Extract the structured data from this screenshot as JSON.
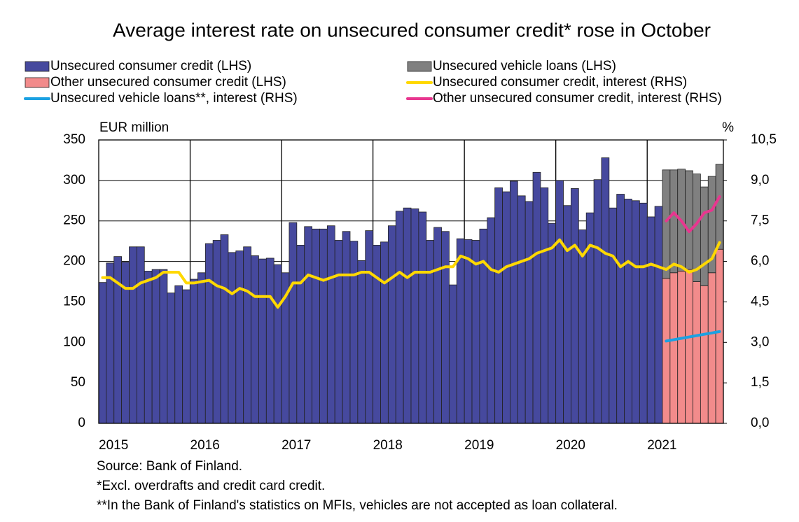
{
  "chart_data": {
    "type": "bar_line",
    "title": "Average interest rate on unsecured consumer credit* rose in October",
    "y_label": "EUR million",
    "y2_label": "%",
    "notes": [
      "Source: Bank of Finland.",
      "*Excl. overdrafts and credit card credit.",
      "**In the Bank of Finland's statistics on MFIs, vehicles are not accepted as loan collateral."
    ],
    "categories": [
      "2015",
      null,
      null,
      null,
      null,
      null,
      null,
      null,
      null,
      null,
      null,
      null,
      "2016",
      null,
      null,
      null,
      null,
      null,
      null,
      null,
      null,
      null,
      null,
      null,
      "2017",
      null,
      null,
      null,
      null,
      null,
      null,
      null,
      null,
      null,
      null,
      null,
      "2018",
      null,
      null,
      null,
      null,
      null,
      null,
      null,
      null,
      null,
      null,
      null,
      "2019",
      null,
      null,
      null,
      null,
      null,
      null,
      null,
      null,
      null,
      null,
      null,
      "2020",
      null,
      null,
      null,
      null,
      null,
      null,
      null,
      null,
      null,
      null,
      null,
      "2021",
      null,
      null,
      null,
      null,
      null,
      null,
      null,
      null,
      null
    ],
    "ylim": [
      0,
      350
    ],
    "yticks": [
      0,
      50,
      100,
      150,
      200,
      250,
      300,
      350
    ],
    "y2lim": [
      0,
      10.5
    ],
    "y2ticks": [
      {
        "value": 0,
        "label": "0,0"
      },
      {
        "value": 1.5,
        "label": "1,5"
      },
      {
        "value": 3,
        "label": "3,0"
      },
      {
        "value": 4.5,
        "label": "4,5"
      },
      {
        "value": 6,
        "label": "6,0"
      },
      {
        "value": 7.5,
        "label": "7,5"
      },
      {
        "value": 9,
        "label": "9,0"
      },
      {
        "value": 10.5,
        "label": "10,5"
      }
    ],
    "grid": true,
    "series": [
      {
        "name": "Unsecured consumer credit (LHS)",
        "kind": "bar",
        "color": "#46499e",
        "values": [
          174,
          198,
          206,
          199,
          218,
          218,
          188,
          190,
          190,
          161,
          170,
          165,
          178,
          186,
          222,
          226,
          233,
          211,
          213,
          218,
          207,
          203,
          204,
          196,
          186,
          248,
          220,
          243,
          240,
          240,
          244,
          226,
          237,
          225,
          201,
          238,
          220,
          224,
          244,
          262,
          266,
          265,
          261,
          226,
          242,
          237,
          171,
          228,
          227,
          226,
          240,
          254,
          291,
          286,
          299,
          281,
          274,
          310,
          291,
          247,
          300,
          269,
          290,
          239,
          260,
          301,
          328,
          266,
          283,
          277,
          275,
          272,
          255,
          268,
          null,
          null,
          null,
          null,
          null,
          null,
          null,
          null
        ]
      },
      {
        "name": "Unsecured vehicle loans (LHS)",
        "kind": "bar",
        "color": "#808080",
        "values": [
          null,
          null,
          null,
          null,
          null,
          null,
          null,
          null,
          null,
          null,
          null,
          null,
          null,
          null,
          null,
          null,
          null,
          null,
          null,
          null,
          null,
          null,
          null,
          null,
          null,
          null,
          null,
          null,
          null,
          null,
          null,
          null,
          null,
          null,
          null,
          null,
          null,
          null,
          null,
          null,
          null,
          null,
          null,
          null,
          null,
          null,
          null,
          null,
          null,
          null,
          null,
          null,
          null,
          null,
          null,
          null,
          null,
          null,
          null,
          null,
          null,
          null,
          null,
          null,
          null,
          null,
          null,
          null,
          null,
          null,
          null,
          null,
          null,
          null,
          134,
          127,
          126,
          122,
          133,
          122,
          119,
          105
        ]
      },
      {
        "name": "Other unsecured consumer credit (LHS)",
        "kind": "bar",
        "color": "#f28b8b",
        "values": [
          null,
          null,
          null,
          null,
          null,
          null,
          null,
          null,
          null,
          null,
          null,
          null,
          null,
          null,
          null,
          null,
          null,
          null,
          null,
          null,
          null,
          null,
          null,
          null,
          null,
          null,
          null,
          null,
          null,
          null,
          null,
          null,
          null,
          null,
          null,
          null,
          null,
          null,
          null,
          null,
          null,
          null,
          null,
          null,
          null,
          null,
          null,
          null,
          null,
          null,
          null,
          null,
          null,
          null,
          null,
          null,
          null,
          null,
          null,
          null,
          null,
          null,
          null,
          null,
          null,
          null,
          null,
          null,
          null,
          null,
          null,
          null,
          null,
          null,
          179,
          186,
          188,
          190,
          175,
          170,
          186,
          215
        ]
      },
      {
        "name": "Unsecured consumer credit, interest (RHS)",
        "kind": "line",
        "axis": "y2",
        "color": "#ffd800",
        "values": [
          5.4,
          5.4,
          5.2,
          5.0,
          5.0,
          5.2,
          5.3,
          5.4,
          5.6,
          5.6,
          5.6,
          5.2,
          5.2,
          5.25,
          5.3,
          5.1,
          5.0,
          4.8,
          5.0,
          4.9,
          4.7,
          4.7,
          4.7,
          4.3,
          4.7,
          5.2,
          5.2,
          5.5,
          5.4,
          5.3,
          5.4,
          5.5,
          5.5,
          5.5,
          5.6,
          5.6,
          5.4,
          5.2,
          5.4,
          5.6,
          5.4,
          5.6,
          5.6,
          5.6,
          5.7,
          5.8,
          5.8,
          6.2,
          6.1,
          5.9,
          6.0,
          5.7,
          5.6,
          5.8,
          5.9,
          6.0,
          6.1,
          6.3,
          6.4,
          6.5,
          6.8,
          6.4,
          6.6,
          6.2,
          6.6,
          6.5,
          6.3,
          6.2,
          5.8,
          6.0,
          5.8,
          5.8,
          5.9,
          5.8,
          5.7,
          5.9,
          5.8,
          5.6,
          5.7,
          5.9,
          6.1,
          6.7
        ]
      },
      {
        "name": "Unsecured vehicle loans**, interest (RHS)",
        "kind": "line",
        "axis": "y2",
        "color": "#1ba1e2",
        "values": [
          null,
          null,
          null,
          null,
          null,
          null,
          null,
          null,
          null,
          null,
          null,
          null,
          null,
          null,
          null,
          null,
          null,
          null,
          null,
          null,
          null,
          null,
          null,
          null,
          null,
          null,
          null,
          null,
          null,
          null,
          null,
          null,
          null,
          null,
          null,
          null,
          null,
          null,
          null,
          null,
          null,
          null,
          null,
          null,
          null,
          null,
          null,
          null,
          null,
          null,
          null,
          null,
          null,
          null,
          null,
          null,
          null,
          null,
          null,
          null,
          null,
          null,
          null,
          null,
          null,
          null,
          null,
          null,
          null,
          null,
          null,
          null,
          null,
          null,
          3.05,
          3.1,
          3.15,
          3.2,
          3.25,
          3.3,
          3.35,
          3.4
        ]
      },
      {
        "name": "Other unsecured consumer credit, interest (RHS)",
        "kind": "line",
        "axis": "y2",
        "color": "#e8368f",
        "values": [
          null,
          null,
          null,
          null,
          null,
          null,
          null,
          null,
          null,
          null,
          null,
          null,
          null,
          null,
          null,
          null,
          null,
          null,
          null,
          null,
          null,
          null,
          null,
          null,
          null,
          null,
          null,
          null,
          null,
          null,
          null,
          null,
          null,
          null,
          null,
          null,
          null,
          null,
          null,
          null,
          null,
          null,
          null,
          null,
          null,
          null,
          null,
          null,
          null,
          null,
          null,
          null,
          null,
          null,
          null,
          null,
          null,
          null,
          null,
          null,
          null,
          null,
          null,
          null,
          null,
          null,
          null,
          null,
          null,
          null,
          null,
          null,
          null,
          null,
          7.5,
          7.8,
          7.5,
          7.1,
          7.4,
          7.8,
          7.9,
          8.4
        ]
      }
    ]
  }
}
